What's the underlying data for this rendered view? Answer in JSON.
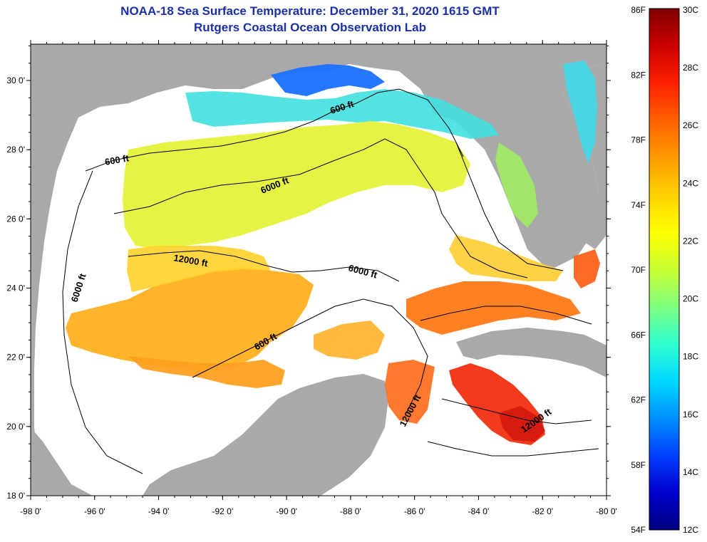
{
  "title_line1": "NOAA-18 Sea Surface Temperature:  December 31, 2020 1615 GMT",
  "title_line2": "Rutgers Coastal Ocean Observation Lab",
  "lat_labels": [
    "30 0'",
    "28 0'",
    "26 0'",
    "24 0'",
    "22 0'",
    "20 0'",
    "18 0'"
  ],
  "lat_values": [
    30,
    28,
    26,
    24,
    22,
    20,
    18
  ],
  "lon_labels": [
    "-98 0'",
    "-96 0'",
    "-94 0'",
    "-92 0'",
    "-90 0'",
    "-88 0'",
    "-86 0'",
    "-84 0'",
    "-82 0'",
    "-80 0'"
  ],
  "lon_values": [
    -98,
    -96,
    -94,
    -92,
    -90,
    -88,
    -86,
    -84,
    -82,
    -80
  ],
  "contour_labels": [
    "600 ft",
    "600 ft",
    "6000 ft",
    "6000 ft",
    "6000 ft",
    "12000 ft",
    "600 ft",
    "12000 ft",
    "12000 ft"
  ],
  "colorbar": {
    "fahrenheit": [
      "86F",
      "82F",
      "78F",
      "74F",
      "70F",
      "66F",
      "62F",
      "58F",
      "54F"
    ],
    "celsius": [
      "30C",
      "28C",
      "26C",
      "24C",
      "22C",
      "20C",
      "18C",
      "16C",
      "14C",
      "12C"
    ],
    "gradient_colors": [
      "#800000",
      "#cc0000",
      "#ff2000",
      "#ff6000",
      "#ff9a00",
      "#ffd000",
      "#ffff00",
      "#c8ff30",
      "#80ff80",
      "#30ffd0",
      "#00d8ff",
      "#0090ff",
      "#0040ff",
      "#0000d0",
      "#000080"
    ]
  },
  "colors": {
    "land": "#a9a9a9",
    "ocean_no_data": "#ffffff",
    "title": "#1a2fa8"
  }
}
